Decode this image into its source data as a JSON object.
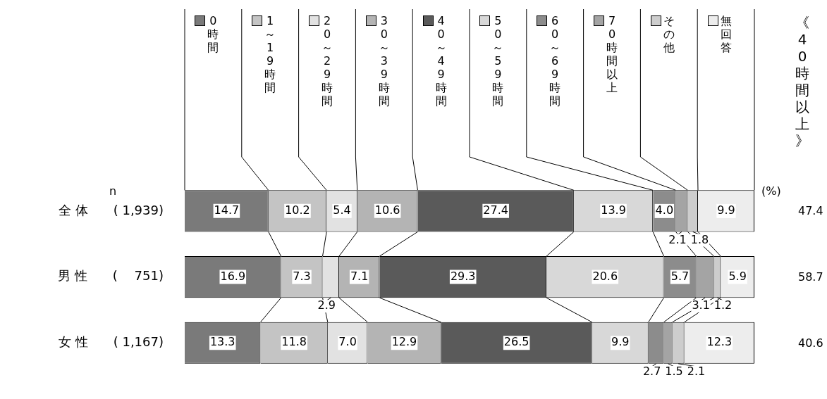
{
  "chart_data": {
    "type": "bar",
    "orientation": "horizontal",
    "stacked": true,
    "categories": [
      "全 体　　( 1,939)",
      "男 性　　(　 751)",
      "女 性　　( 1,167)"
    ],
    "series": [
      {
        "name": "0時間",
        "color": "#7a7a7a",
        "values": [
          14.7,
          16.9,
          13.3
        ],
        "value_labels": [
          "14.7",
          "16.9",
          "13.3"
        ]
      },
      {
        "name": "1～19時間",
        "color": "#c4c4c4",
        "values": [
          10.2,
          7.3,
          11.8
        ],
        "value_labels": [
          "10.2",
          "7.3",
          "11.8"
        ]
      },
      {
        "name": "20～29時間",
        "color": "#e2e2e2",
        "values": [
          5.4,
          2.9,
          7.0
        ],
        "value_labels": [
          "5.4",
          "2.9",
          "7.0"
        ]
      },
      {
        "name": "30～39時間",
        "color": "#b4b4b4",
        "values": [
          10.6,
          7.1,
          12.9
        ],
        "value_labels": [
          "10.6",
          "7.1",
          "12.9"
        ]
      },
      {
        "name": "40～49時間",
        "color": "#5a5a5a",
        "values": [
          27.4,
          29.3,
          26.5
        ],
        "value_labels": [
          "27.4",
          "29.3",
          "26.5"
        ]
      },
      {
        "name": "50～59時間",
        "color": "#d8d8d8",
        "values": [
          13.9,
          20.6,
          9.9
        ],
        "value_labels": [
          "13.9",
          "20.6",
          "9.9"
        ]
      },
      {
        "name": "60～69時間",
        "color": "#8c8c8c",
        "values": [
          4.0,
          5.7,
          2.7
        ],
        "value_labels": [
          "4.0",
          "5.7",
          "2.7"
        ]
      },
      {
        "name": "70時間以上",
        "color": "#a4a4a4",
        "values": [
          2.1,
          3.1,
          1.5
        ],
        "value_labels": [
          "2.1",
          "3.1",
          "1.5"
        ]
      },
      {
        "name": "その他",
        "color": "#cdcdcd",
        "values": [
          1.8,
          1.2,
          2.1
        ],
        "value_labels": [
          "1.8",
          "1.2",
          "2.1"
        ]
      },
      {
        "name": "無回答",
        "color": "#ededed",
        "values": [
          9.9,
          5.9,
          12.3
        ],
        "value_labels": [
          "9.9",
          "5.9",
          "12.3"
        ]
      }
    ],
    "xlim": [
      0,
      100
    ],
    "legend": "top",
    "tick_labels": "y",
    "grid": false,
    "annotations": [
      "n",
      "(%)",
      "《40時間以上》",
      "47.4",
      "58.7",
      "40.6"
    ]
  }
}
